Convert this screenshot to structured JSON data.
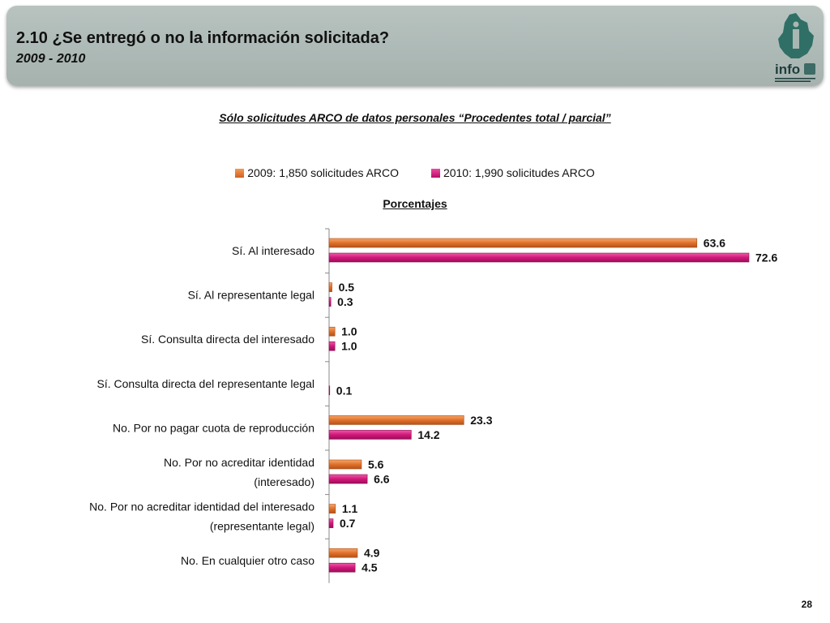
{
  "header": {
    "title": "2.10 ¿Se entregó o no la información solicitada?",
    "subtitle": "2009 - 2010",
    "logo_text": "info"
  },
  "page_number": "28",
  "colors": {
    "series_2009": "#e0702a",
    "series_2010": "#d0187a",
    "header_bg": "#a9b6b2"
  },
  "chart_data": {
    "type": "bar",
    "orientation": "horizontal",
    "title": "Sólo solicitudes ARCO de datos personales “Procedentes total / parcial”",
    "unit_label": "Porcentajes",
    "legend_position": "top",
    "categories": [
      [
        "Sí. Al interesado"
      ],
      [
        "Sí. Al representante legal"
      ],
      [
        "Sí. Consulta directa del interesado"
      ],
      [
        "Sí. Consulta directa del representante legal"
      ],
      [
        "No. Por no pagar cuota de reproducción"
      ],
      [
        "No. Por no acreditar identidad",
        "(interesado)"
      ],
      [
        "No. Por no acreditar identidad del interesado",
        "(representante legal)"
      ],
      [
        "No. En cualquier otro caso"
      ]
    ],
    "series": [
      {
        "name": "2009: 1,850 solicitudes ARCO",
        "values": [
          63.6,
          0.5,
          1.0,
          null,
          23.3,
          5.6,
          1.1,
          4.9
        ],
        "labels": [
          "63.6",
          "0.5",
          "1.0",
          "",
          "23.3",
          "5.6",
          "1.1",
          "4.9"
        ]
      },
      {
        "name": "2010: 1,990 solicitudes ARCO",
        "values": [
          72.6,
          0.3,
          1.0,
          0.1,
          14.2,
          6.6,
          0.7,
          4.5
        ],
        "labels": [
          "72.6",
          "0.3",
          "1.0",
          "0.1",
          "14.2",
          "6.6",
          "0.7",
          "4.5"
        ]
      }
    ],
    "xlim": [
      0,
      72.6
    ]
  }
}
